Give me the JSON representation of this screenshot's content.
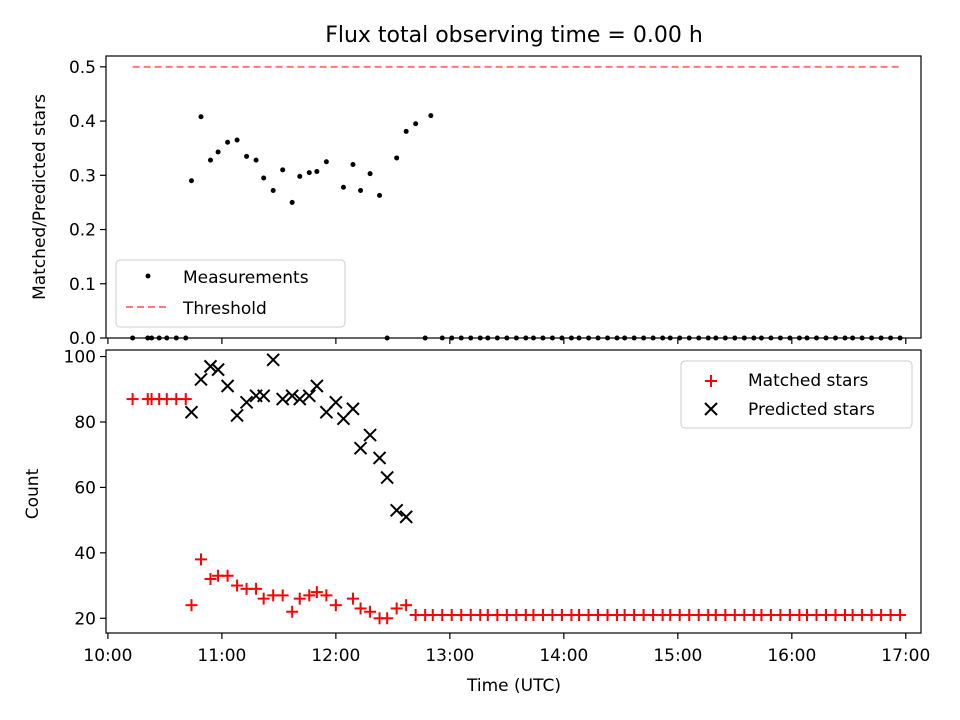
{
  "figure_title": "Flux total observing time = 0.00 h",
  "chart_data": [
    {
      "type": "scatter",
      "title": "Flux total observing time = 0.00 h",
      "xlabel": "",
      "ylabel": "Matched/Predicted stars",
      "xlim": [
        "09:59",
        "17:08"
      ],
      "ylim": [
        0,
        0.52
      ],
      "yticks": [
        "0.0",
        "0.1",
        "0.2",
        "0.3",
        "0.4",
        "0.5"
      ],
      "yticks_values": [
        0,
        0.1,
        0.2,
        0.3,
        0.4,
        0.5
      ],
      "grid": false,
      "legend_position": "lower-left",
      "series": [
        {
          "name": "Measurements",
          "marker": "dot",
          "color": "#000000",
          "points": [
            [
              "10:13",
              0.0
            ],
            [
              "10:21",
              0.0
            ],
            [
              "10:23",
              0.0
            ],
            [
              "10:27",
              0.0
            ],
            [
              "10:31",
              0.0
            ],
            [
              "10:36",
              0.0
            ],
            [
              "10:41",
              0.0
            ],
            [
              "10:44",
              0.29
            ],
            [
              "10:49",
              0.408
            ],
            [
              "10:54",
              0.328
            ],
            [
              "10:58",
              0.343
            ],
            [
              "11:03",
              0.361
            ],
            [
              "11:08",
              0.365
            ],
            [
              "11:13",
              0.335
            ],
            [
              "11:18",
              0.328
            ],
            [
              "11:22",
              0.295
            ],
            [
              "11:27",
              0.272
            ],
            [
              "11:32",
              0.31
            ],
            [
              "11:37",
              0.25
            ],
            [
              "11:41",
              0.298
            ],
            [
              "11:46",
              0.305
            ],
            [
              "11:50",
              0.307
            ],
            [
              "11:55",
              0.325
            ],
            [
              "12:04",
              0.278
            ],
            [
              "12:09",
              0.32
            ],
            [
              "12:13",
              0.272
            ],
            [
              "12:18",
              0.303
            ],
            [
              "12:23",
              0.263
            ],
            [
              "12:27",
              0.0
            ],
            [
              "12:32",
              0.332
            ],
            [
              "12:37",
              0.381
            ],
            [
              "12:42",
              0.395
            ],
            [
              "12:47",
              0.0
            ],
            [
              "12:50",
              0.41
            ],
            [
              "12:56",
              0.0
            ],
            [
              "13:01",
              0.0
            ],
            [
              "13:06",
              0.0
            ],
            [
              "13:11",
              0.0
            ],
            [
              "13:16",
              0.0
            ],
            [
              "13:20",
              0.0
            ],
            [
              "13:25",
              0.0
            ],
            [
              "13:30",
              0.0
            ],
            [
              "13:35",
              0.0
            ],
            [
              "13:40",
              0.0
            ],
            [
              "13:44",
              0.0
            ],
            [
              "13:49",
              0.0
            ],
            [
              "13:54",
              0.0
            ],
            [
              "13:59",
              0.0
            ],
            [
              "14:04",
              0.0
            ],
            [
              "14:08",
              0.0
            ],
            [
              "14:13",
              0.0
            ],
            [
              "14:18",
              0.0
            ],
            [
              "14:23",
              0.0
            ],
            [
              "14:28",
              0.0
            ],
            [
              "14:32",
              0.0
            ],
            [
              "14:37",
              0.0
            ],
            [
              "14:42",
              0.0
            ],
            [
              "14:47",
              0.0
            ],
            [
              "14:52",
              0.0
            ],
            [
              "14:56",
              0.0
            ],
            [
              "15:01",
              0.0
            ],
            [
              "15:06",
              0.0
            ],
            [
              "15:11",
              0.0
            ],
            [
              "15:16",
              0.0
            ],
            [
              "15:20",
              0.0
            ],
            [
              "15:25",
              0.0
            ],
            [
              "15:30",
              0.0
            ],
            [
              "15:35",
              0.0
            ],
            [
              "15:40",
              0.0
            ],
            [
              "15:44",
              0.0
            ],
            [
              "15:49",
              0.0
            ],
            [
              "15:54",
              0.0
            ],
            [
              "15:59",
              0.0
            ],
            [
              "16:04",
              0.0
            ],
            [
              "16:08",
              0.0
            ],
            [
              "16:13",
              0.0
            ],
            [
              "16:18",
              0.0
            ],
            [
              "16:23",
              0.0
            ],
            [
              "16:28",
              0.0
            ],
            [
              "16:32",
              0.0
            ],
            [
              "16:37",
              0.0
            ],
            [
              "16:42",
              0.0
            ],
            [
              "16:47",
              0.0
            ],
            [
              "16:52",
              0.0
            ],
            [
              "16:57",
              0.0
            ]
          ]
        },
        {
          "name": "Threshold",
          "line": "dashed",
          "color": "#ff7777",
          "points": [
            [
              "10:13",
              0.5
            ],
            [
              "16:57",
              0.5
            ]
          ]
        }
      ]
    },
    {
      "type": "scatter",
      "title": "",
      "xlabel": "Time (UTC)",
      "ylabel": "Count",
      "xlim": [
        "09:59",
        "17:08"
      ],
      "ylim": [
        15.5,
        102
      ],
      "xticks": [
        "10:00",
        "11:00",
        "12:00",
        "13:00",
        "14:00",
        "15:00",
        "16:00",
        "17:00"
      ],
      "yticks": [
        "20",
        "40",
        "60",
        "80",
        "100"
      ],
      "yticks_values": [
        20,
        40,
        60,
        80,
        100
      ],
      "grid": false,
      "legend_position": "upper-right",
      "series": [
        {
          "name": "Matched stars",
          "marker": "plus",
          "color": "#ff0000",
          "points": [
            [
              "10:13",
              87
            ],
            [
              "10:21",
              87
            ],
            [
              "10:23",
              87
            ],
            [
              "10:27",
              87
            ],
            [
              "10:31",
              87
            ],
            [
              "10:36",
              87
            ],
            [
              "10:41",
              87
            ],
            [
              "10:44",
              24
            ],
            [
              "10:49",
              38
            ],
            [
              "10:54",
              32
            ],
            [
              "10:58",
              33
            ],
            [
              "11:03",
              33
            ],
            [
              "11:08",
              30
            ],
            [
              "11:13",
              29
            ],
            [
              "11:18",
              29
            ],
            [
              "11:22",
              26
            ],
            [
              "11:27",
              27
            ],
            [
              "11:32",
              27
            ],
            [
              "11:37",
              22
            ],
            [
              "11:41",
              26
            ],
            [
              "11:46",
              27
            ],
            [
              "11:50",
              28
            ],
            [
              "11:55",
              27
            ],
            [
              "12:00",
              24
            ],
            [
              "12:09",
              26
            ],
            [
              "12:13",
              23
            ],
            [
              "12:18",
              22
            ],
            [
              "12:23",
              20
            ],
            [
              "12:27",
              20
            ],
            [
              "12:32",
              23
            ],
            [
              "12:37",
              24
            ],
            [
              "12:42",
              21
            ],
            [
              "12:47",
              21
            ],
            [
              "12:51",
              21
            ],
            [
              "12:56",
              21
            ],
            [
              "13:01",
              21
            ],
            [
              "13:06",
              21
            ],
            [
              "13:11",
              21
            ],
            [
              "13:16",
              21
            ],
            [
              "13:20",
              21
            ],
            [
              "13:25",
              21
            ],
            [
              "13:30",
              21
            ],
            [
              "13:35",
              21
            ],
            [
              "13:40",
              21
            ],
            [
              "13:44",
              21
            ],
            [
              "13:49",
              21
            ],
            [
              "13:54",
              21
            ],
            [
              "13:59",
              21
            ],
            [
              "14:04",
              21
            ],
            [
              "14:08",
              21
            ],
            [
              "14:13",
              21
            ],
            [
              "14:18",
              21
            ],
            [
              "14:23",
              21
            ],
            [
              "14:28",
              21
            ],
            [
              "14:32",
              21
            ],
            [
              "14:37",
              21
            ],
            [
              "14:42",
              21
            ],
            [
              "14:47",
              21
            ],
            [
              "14:52",
              21
            ],
            [
              "14:56",
              21
            ],
            [
              "15:01",
              21
            ],
            [
              "15:06",
              21
            ],
            [
              "15:11",
              21
            ],
            [
              "15:16",
              21
            ],
            [
              "15:20",
              21
            ],
            [
              "15:25",
              21
            ],
            [
              "15:30",
              21
            ],
            [
              "15:35",
              21
            ],
            [
              "15:40",
              21
            ],
            [
              "15:44",
              21
            ],
            [
              "15:49",
              21
            ],
            [
              "15:54",
              21
            ],
            [
              "15:59",
              21
            ],
            [
              "16:04",
              21
            ],
            [
              "16:08",
              21
            ],
            [
              "16:13",
              21
            ],
            [
              "16:18",
              21
            ],
            [
              "16:23",
              21
            ],
            [
              "16:28",
              21
            ],
            [
              "16:32",
              21
            ],
            [
              "16:37",
              21
            ],
            [
              "16:42",
              21
            ],
            [
              "16:47",
              21
            ],
            [
              "16:52",
              21
            ],
            [
              "16:57",
              21
            ]
          ]
        },
        {
          "name": "Predicted stars",
          "marker": "x",
          "color": "#000000",
          "points": [
            [
              "10:44",
              83
            ],
            [
              "10:49",
              93
            ],
            [
              "10:54",
              97
            ],
            [
              "10:58",
              96
            ],
            [
              "11:03",
              91
            ],
            [
              "11:08",
              82
            ],
            [
              "11:13",
              86
            ],
            [
              "11:18",
              88
            ],
            [
              "11:22",
              88
            ],
            [
              "11:27",
              99
            ],
            [
              "11:32",
              87
            ],
            [
              "11:37",
              88
            ],
            [
              "11:41",
              87
            ],
            [
              "11:46",
              88
            ],
            [
              "11:50",
              91
            ],
            [
              "11:55",
              83
            ],
            [
              "12:00",
              86
            ],
            [
              "12:04",
              81
            ],
            [
              "12:09",
              84
            ],
            [
              "12:13",
              72
            ],
            [
              "12:18",
              76
            ],
            [
              "12:23",
              69
            ],
            [
              "12:27",
              63
            ],
            [
              "12:32",
              53
            ],
            [
              "12:37",
              51
            ]
          ]
        }
      ]
    }
  ]
}
